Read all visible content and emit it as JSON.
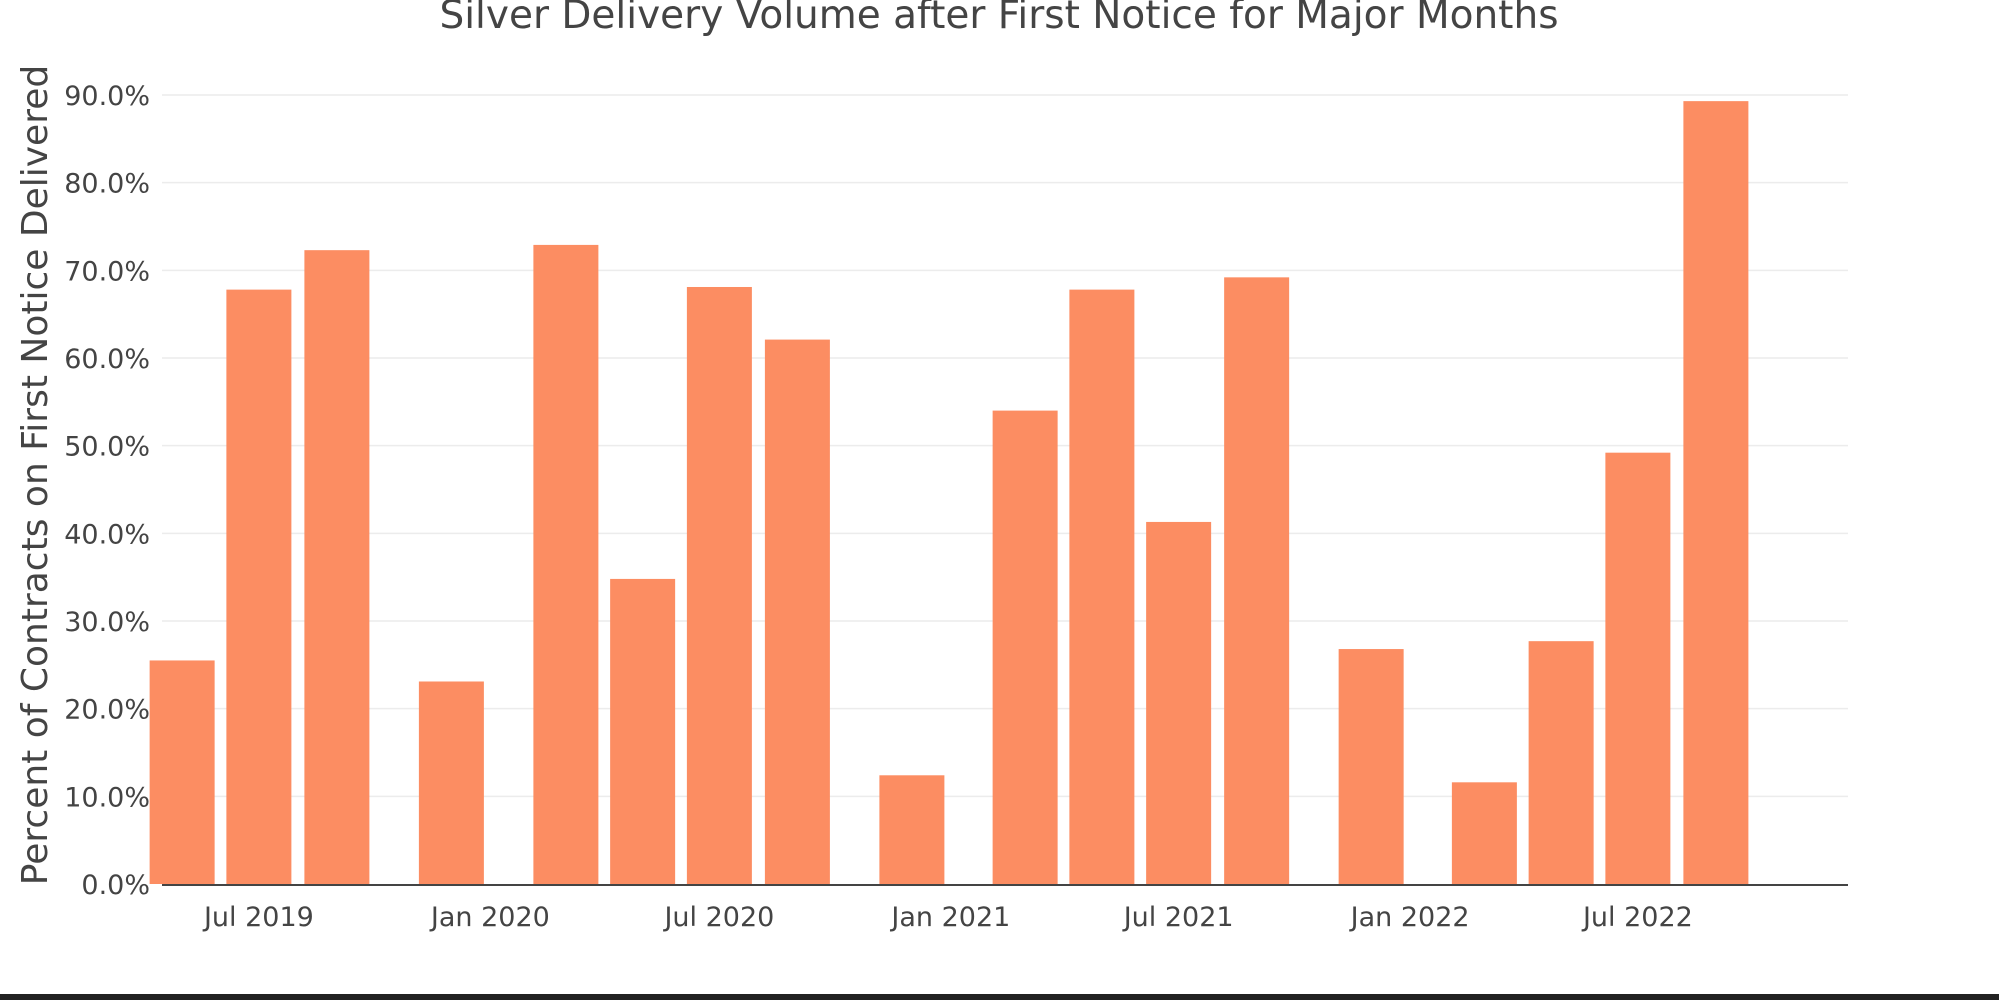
{
  "chart_data": {
    "type": "bar",
    "title": "Silver Delivery Volume after First Notice for Major Months",
    "xlabel": "",
    "ylabel": "Percent of Contracts on First Notice Delivered",
    "ylim": [
      0,
      90
    ],
    "y_ticks": [
      0,
      10,
      20,
      30,
      40,
      50,
      60,
      70,
      80,
      90
    ],
    "y_tick_format": "percent_1dp",
    "grid": true,
    "legend": "none",
    "bar_color": "#fc8d62",
    "x_type": "date",
    "x_range": [
      "2019-04-15",
      "2022-12-15"
    ],
    "x_ticks": [
      {
        "date": "2019-07-01",
        "label": "Jul 2019"
      },
      {
        "date": "2020-01-01",
        "label": "Jan 2020"
      },
      {
        "date": "2020-07-01",
        "label": "Jul 2020"
      },
      {
        "date": "2021-01-01",
        "label": "Jan 2021"
      },
      {
        "date": "2021-07-01",
        "label": "Jul 2021"
      },
      {
        "date": "2022-01-01",
        "label": "Jan 2022"
      },
      {
        "date": "2022-07-01",
        "label": "Jul 2022"
      }
    ],
    "bars": [
      {
        "x": "2019-05-01",
        "y": 25.5
      },
      {
        "x": "2019-07-01",
        "y": 67.8
      },
      {
        "x": "2019-09-01",
        "y": 72.3
      },
      {
        "x": "2019-12-01",
        "y": 23.1
      },
      {
        "x": "2020-03-01",
        "y": 72.9
      },
      {
        "x": "2020-05-01",
        "y": 34.8
      },
      {
        "x": "2020-07-01",
        "y": 68.1
      },
      {
        "x": "2020-09-01",
        "y": 62.1
      },
      {
        "x": "2020-12-01",
        "y": 12.4
      },
      {
        "x": "2021-03-01",
        "y": 54.0
      },
      {
        "x": "2021-05-01",
        "y": 67.8
      },
      {
        "x": "2021-07-01",
        "y": 41.3
      },
      {
        "x": "2021-09-01",
        "y": 69.2
      },
      {
        "x": "2021-12-01",
        "y": 26.8
      },
      {
        "x": "2022-03-01",
        "y": 11.6
      },
      {
        "x": "2022-05-01",
        "y": 27.7
      },
      {
        "x": "2022-07-01",
        "y": 49.2
      },
      {
        "x": "2022-09-01",
        "y": 89.3
      }
    ]
  }
}
